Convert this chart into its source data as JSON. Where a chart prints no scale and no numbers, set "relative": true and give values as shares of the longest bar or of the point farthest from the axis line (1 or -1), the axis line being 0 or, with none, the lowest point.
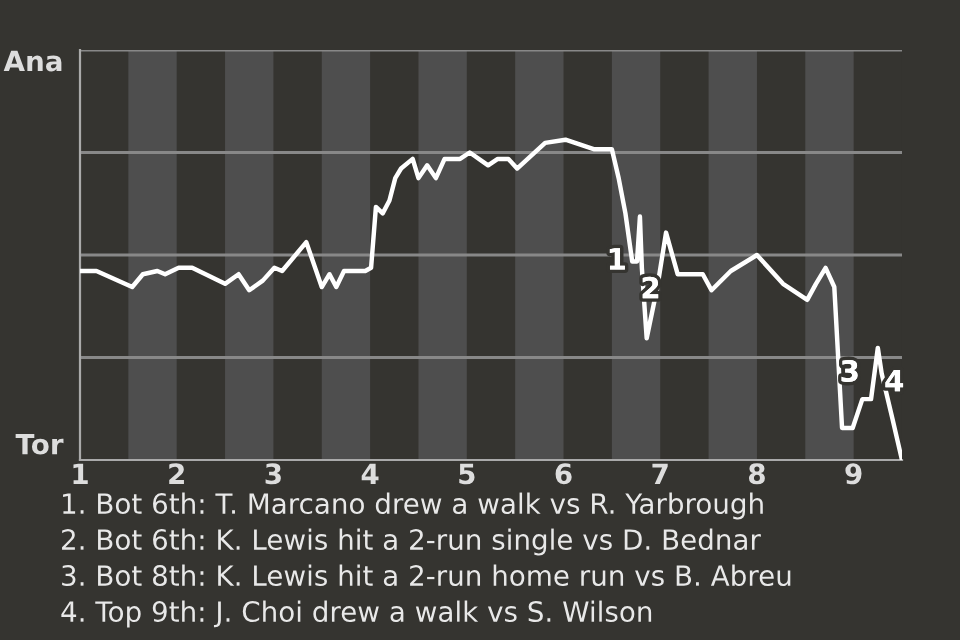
{
  "chart_data": {
    "type": "line",
    "relative": true,
    "x": [
      1,
      1.17,
      1.54,
      1.65,
      1.8,
      1.88,
      2.02,
      2.16,
      2.5,
      2.64,
      2.75,
      2.89,
      3.01,
      3.09,
      3.34,
      3.5,
      3.58,
      3.65,
      3.73,
      3.95,
      4.01,
      4.06,
      4.13,
      4.2,
      4.26,
      4.32,
      4.44,
      4.5,
      4.59,
      4.68,
      4.77,
      4.93,
      5.03,
      5.22,
      5.32,
      5.43,
      5.52,
      5.81,
      6.02,
      6.32,
      6.5,
      6.57,
      6.64,
      6.71,
      6.76,
      6.79,
      6.81,
      6.86,
      6.97,
      7.06,
      7.18,
      7.44,
      7.53,
      7.73,
      8,
      8.27,
      8.52,
      8.61,
      8.71,
      8.8,
      8.88,
      8.99,
      9.09,
      9.18,
      9.25,
      9.29,
      9.4,
      9.5
    ],
    "series": [
      {
        "color": "#ffffff",
        "values": [
          0.59,
          0.59,
          0.54,
          0.58,
          0.59,
          0.58,
          0.6,
          0.6,
          0.55,
          0.58,
          0.53,
          0.56,
          0.6,
          0.59,
          0.68,
          0.54,
          0.58,
          0.54,
          0.59,
          0.59,
          0.6,
          0.79,
          0.77,
          0.81,
          0.88,
          0.91,
          0.94,
          0.88,
          0.92,
          0.88,
          0.94,
          0.94,
          0.96,
          0.92,
          0.94,
          0.94,
          0.91,
          0.99,
          1,
          0.97,
          0.97,
          0.88,
          0.77,
          0.62,
          0.62,
          0.76,
          0.6,
          0.38,
          0.54,
          0.71,
          0.58,
          0.58,
          0.53,
          0.59,
          0.64,
          0.55,
          0.5,
          0.55,
          0.6,
          0.54,
          0.1,
          0.1,
          0.19,
          0.19,
          0.35,
          0.27,
          0.13,
          0
        ]
      }
    ],
    "xlim": [
      1,
      9.5
    ],
    "xticks": [
      1,
      2,
      3,
      4,
      5,
      6,
      7,
      8,
      9
    ],
    "grid": "y",
    "marker": "none",
    "line_style": "solid",
    "bands": [
      {
        "axis": "x",
        "from": 1.5,
        "to": 2,
        "color": "#4e4e4e"
      },
      {
        "axis": "x",
        "from": 2.5,
        "to": 3,
        "color": "#4e4e4e"
      },
      {
        "axis": "x",
        "from": 3.5,
        "to": 4,
        "color": "#4e4e4e"
      },
      {
        "axis": "x",
        "from": 4.5,
        "to": 5,
        "color": "#4e4e4e"
      },
      {
        "axis": "x",
        "from": 5.5,
        "to": 6,
        "color": "#4e4e4e"
      },
      {
        "axis": "x",
        "from": 6.5,
        "to": 7,
        "color": "#4e4e4e"
      },
      {
        "axis": "x",
        "from": 7.5,
        "to": 8,
        "color": "#4e4e4e"
      },
      {
        "axis": "x",
        "from": 8.5,
        "to": 9,
        "color": "#4e4e4e"
      }
    ],
    "annotations": [
      "Ana",
      "Tor",
      {
        "text": "1",
        "x": 6.55,
        "y": 0.62
      },
      {
        "text": "2",
        "x": 6.9,
        "y": 0.53
      },
      {
        "text": "3",
        "x": 8.96,
        "y": 0.27
      },
      {
        "text": "4",
        "x": 9.42,
        "y": 0.24
      },
      "1. Bot 6th: T. Marcano drew a walk vs R. Yarbrough",
      "2. Bot 6th: K. Lewis hit a 2-run single vs D. Bednar",
      "3. Bot 8th: K. Lewis hit a 2-run home run vs B. Abreu",
      "4. Top 9th: J. Choi drew a walk vs S. Wilson"
    ]
  }
}
